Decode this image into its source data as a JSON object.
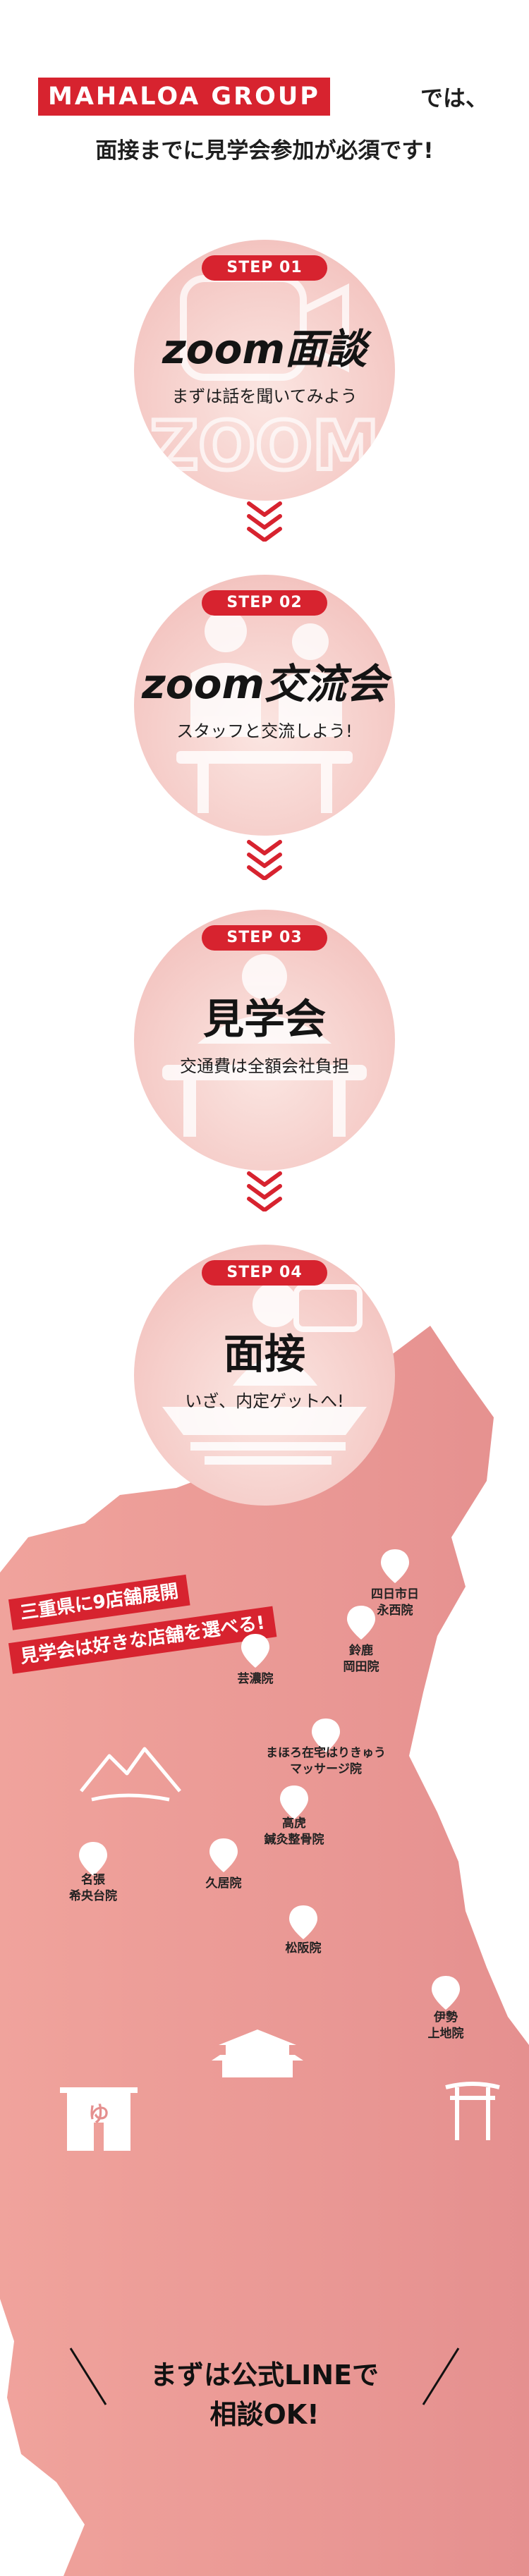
{
  "header": {
    "brand": "MAHALOA GROUP",
    "brand_suffix": "では、",
    "subheading": "面接までに見学会参加が必須です!"
  },
  "steps": [
    {
      "badge": "STEP 01",
      "title": "zoom面談",
      "subtitle": "まずは話を聞いてみよう",
      "icon": "zoom-camera-icon"
    },
    {
      "badge": "STEP 02",
      "title": "zoom交流会",
      "subtitle": "スタッフと交流しよう!",
      "icon": "people-chat-icon"
    },
    {
      "badge": "STEP 03",
      "title": "見学会",
      "subtitle": "交通費は全額会社負担",
      "icon": "treatment-bed-icon"
    },
    {
      "badge": "STEP 04",
      "title": "面接",
      "subtitle": "いざ、内定ゲットへ!",
      "icon": "interview-icon"
    }
  ],
  "map": {
    "ribbon_line1": "三重県に9店舗展開",
    "ribbon_line2": "見学会は好きな店舗を選べる!",
    "clinics": [
      {
        "name": "四日市日\n永西院"
      },
      {
        "name": "鈴鹿\n岡田院"
      },
      {
        "name": "芸濃院"
      },
      {
        "name": "まほろ在宅はりきゅう\nマッサージ院"
      },
      {
        "name": "高虎\n鍼灸整骨院"
      },
      {
        "name": "名張\n希央台院"
      },
      {
        "name": "久居院"
      },
      {
        "name": "松阪院"
      },
      {
        "name": "伊勢\n上地院"
      }
    ],
    "landmarks": [
      "mountain-icon",
      "castle-icon",
      "torii-icon",
      "onsen-noren-icon"
    ],
    "cta_line1": "まずは公式LINEで",
    "cta_line2": "相談OK!"
  },
  "colors": {
    "accent": "#d7232f",
    "circle": "#f4c7c3",
    "map": "#e9918e"
  }
}
